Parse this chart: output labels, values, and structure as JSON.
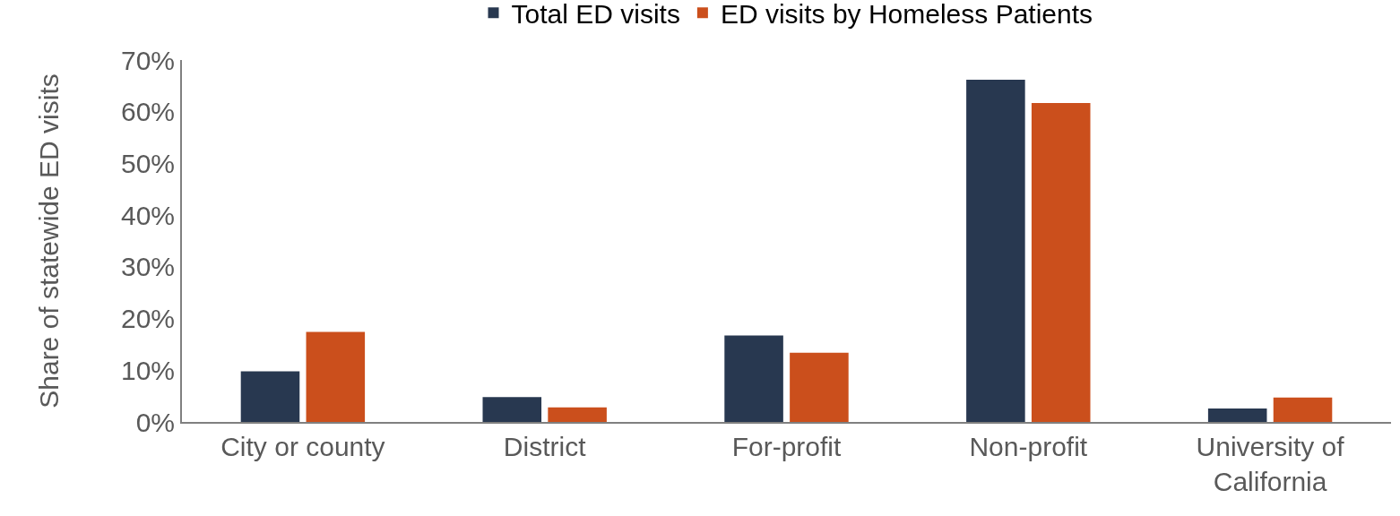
{
  "chart_data": {
    "type": "bar",
    "ylabel": "Share of statewide ED visits",
    "categories": [
      "City or county",
      "District",
      "For-profit",
      "Non-profit",
      "University of California"
    ],
    "series": [
      {
        "name": "Total ED visits",
        "color": "#283850",
        "values": [
          9.8,
          4.8,
          16.7,
          66.2,
          2.6
        ]
      },
      {
        "name": "ED visits by Homeless Patients",
        "color": "#cb4f1c",
        "values": [
          17.4,
          2.8,
          13.4,
          61.7,
          4.7
        ]
      }
    ],
    "ylim": [
      0,
      70
    ],
    "yticks": [
      {
        "value": 0,
        "label": "0%"
      },
      {
        "value": 10,
        "label": "10%"
      },
      {
        "value": 20,
        "label": "20%"
      },
      {
        "value": 30,
        "label": "30%"
      },
      {
        "value": 40,
        "label": "40%"
      },
      {
        "value": 50,
        "label": "50%"
      },
      {
        "value": 60,
        "label": "60%"
      },
      {
        "value": 70,
        "label": "70%"
      }
    ],
    "legend": "top"
  }
}
